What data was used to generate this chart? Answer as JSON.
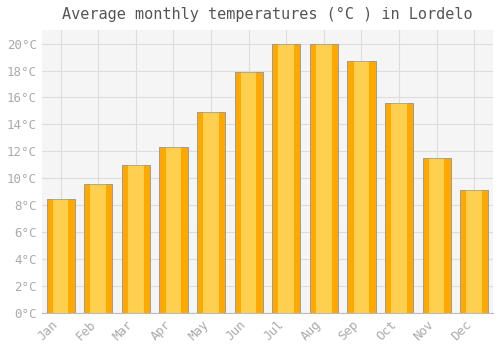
{
  "title": "Average monthly temperatures (°C ) in Lordelo",
  "months": [
    "Jan",
    "Feb",
    "Mar",
    "Apr",
    "May",
    "Jun",
    "Jul",
    "Aug",
    "Sep",
    "Oct",
    "Nov",
    "Dec"
  ],
  "values": [
    8.5,
    9.6,
    11.0,
    12.3,
    14.9,
    17.9,
    20.0,
    20.0,
    18.7,
    15.6,
    11.5,
    9.1
  ],
  "bar_color_face": "#FFA800",
  "bar_color_light": "#FFD050",
  "bar_color_edge": "#999999",
  "background_color": "#FFFFFF",
  "plot_bg_color": "#F5F5F5",
  "grid_color": "#DDDDDD",
  "tick_label_color": "#AAAAAA",
  "title_color": "#555555",
  "ylim": [
    0,
    21
  ],
  "yticks": [
    0,
    2,
    4,
    6,
    8,
    10,
    12,
    14,
    16,
    18,
    20
  ],
  "title_fontsize": 11,
  "tick_fontsize": 9,
  "font_family": "monospace"
}
